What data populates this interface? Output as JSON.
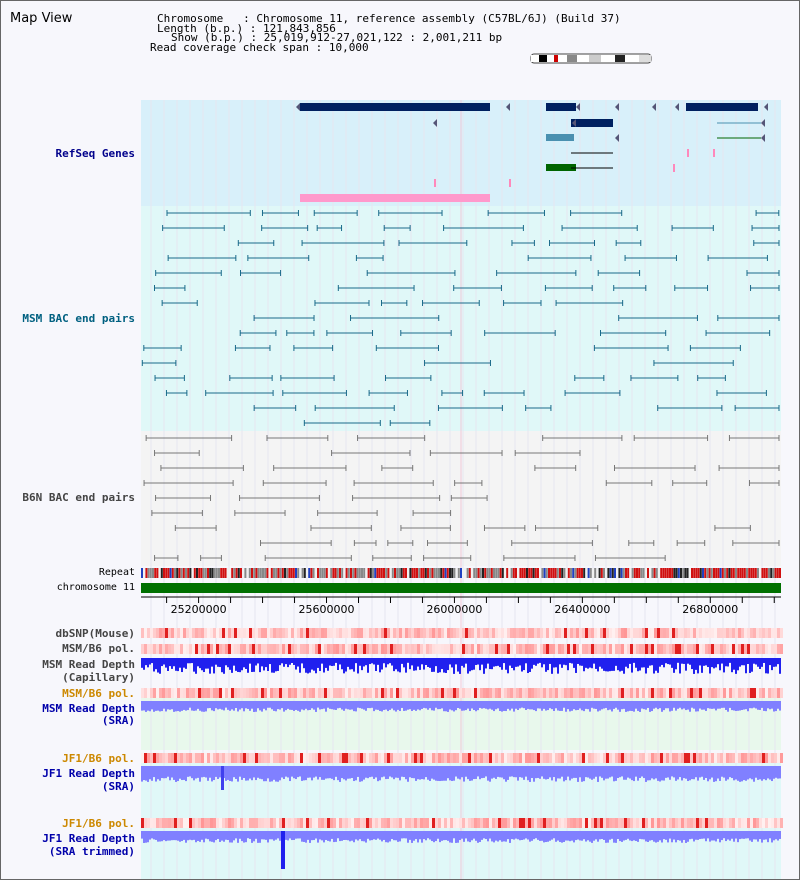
{
  "title": "Map View",
  "info": {
    "chromosome_label": "Chromosome",
    "chromosome_value": "Chromosome 11, reference assembly (C57BL/6J) (Build 37)",
    "length_label": "Length (b.p.)",
    "length_value": "121,843,856",
    "show_label": "Show (b.p.)",
    "show_value": "25,019,912-27,021,122 : 2,001,211 bp",
    "coverage_label": "Read coverage check span",
    "coverage_value": "10,000"
  },
  "tracks": {
    "refseq": "RefSeq Genes",
    "msm_bac": "MSM BAC end pairs",
    "b6n_bac": "B6N BAC end pairs",
    "repeat": "Repeat",
    "chromosome": "chromosome 11",
    "dbsnp": "dbSNP(Mouse)",
    "msm_b6_pol": "MSM/B6 pol.",
    "msm_depth_cap_1": "MSM Read Depth",
    "msm_depth_cap_2": "(Capillary)",
    "msm_b6_pol_2": "MSM/B6 pol.",
    "msm_depth_sra_1": "MSM Read Depth",
    "msm_depth_sra_2": "(SRA)",
    "jf1_b6_pol": "JF1/B6 pol.",
    "jf1_depth_sra_1": "JF1 Read Depth",
    "jf1_depth_sra_2": "(SRA)",
    "jf1_b6_pol_2": "JF1/B6 pol.",
    "jf1_depth_trim_1": "JF1 Read Depth",
    "jf1_depth_trim_2": "(SRA trimmed)"
  },
  "axis": {
    "start": 25019912,
    "end": 27021122,
    "ticks": [
      "25200000",
      "25600000",
      "26000000",
      "26400000",
      "26800000"
    ],
    "tick_values": [
      25200000,
      25600000,
      26000000,
      26400000,
      26800000
    ]
  },
  "colors": {
    "refseq_label": "#00008b",
    "msm_label": "#006080",
    "b6n_label": "#444444",
    "dbsnp_label": "#444444",
    "msm_pol_label": "#cc8800",
    "msm_depth_label": "#0000aa",
    "gene_navy": "#002060",
    "gene_teal": "#4a90b0",
    "gene_green": "#006400",
    "gene_pink": "#ff99cc",
    "bac_msm": "#1a6a8a",
    "bac_b6n": "#777777",
    "depth_blue": "#2020ee",
    "depth_light": "#8080ff",
    "chrom_green": "#007000"
  }
}
